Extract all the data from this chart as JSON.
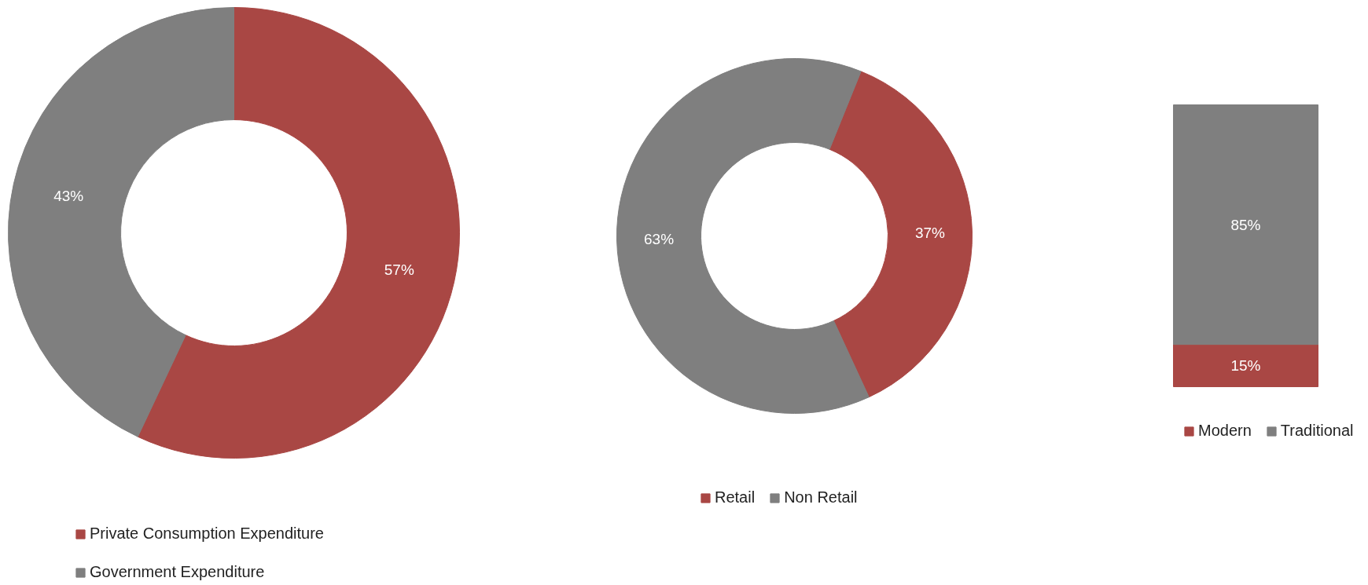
{
  "chart_data": [
    {
      "type": "donut",
      "categories": [
        "Private Consumption Expenditure",
        "Government Expenditure"
      ],
      "values": [
        57,
        43
      ],
      "colors": [
        "#a94744",
        "#7f7f7f"
      ],
      "value_labels": [
        "57%",
        "43%"
      ],
      "legend": "bottom left"
    },
    {
      "type": "donut",
      "categories": [
        "Retail",
        "Non Retail"
      ],
      "values": [
        37,
        63
      ],
      "colors": [
        "#a94744",
        "#7f7f7f"
      ],
      "value_labels": [
        "37%",
        "63%"
      ],
      "legend": "bottom"
    },
    {
      "type": "bar",
      "stacked": true,
      "categories": [
        null
      ],
      "series": [
        {
          "name": "Modern",
          "color": "#a94744",
          "values": [
            15
          ],
          "value_labels": [
            "15%"
          ]
        },
        {
          "name": "Traditional",
          "color": "#7f7f7f",
          "values": [
            85
          ],
          "value_labels": [
            "85%"
          ]
        }
      ],
      "legend": "bottom right"
    }
  ]
}
